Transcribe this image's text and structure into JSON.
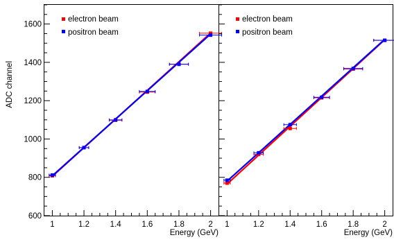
{
  "chart_data": [
    {
      "type": "line",
      "xlabel": "Energy (GeV)",
      "ylabel": "ADC channel",
      "xlim": [
        0.95,
        2.05
      ],
      "ylim": [
        600,
        1700
      ],
      "x_ticks": [
        "1",
        "1.2",
        "1.4",
        "1.6",
        "1.8",
        "2"
      ],
      "y_ticks": [
        "600",
        "800",
        "1000",
        "1200",
        "1400",
        "1600"
      ],
      "legend": {
        "position": "top-left",
        "entries": [
          "electron beam",
          "positron beam"
        ]
      },
      "series": [
        {
          "name": "electron beam",
          "color": "#ff0000",
          "x": [
            1.0,
            1.2,
            1.4,
            1.6,
            1.8,
            2.0
          ],
          "y": [
            808,
            955,
            1098,
            1245,
            1390,
            1552
          ],
          "xerr": [
            0.02,
            0.03,
            0.04,
            0.05,
            0.06,
            0.07
          ],
          "fit": [
            805,
            1553
          ]
        },
        {
          "name": "positron beam",
          "color": "#0000ff",
          "x": [
            1.0,
            1.2,
            1.4,
            1.6,
            1.8,
            2.0
          ],
          "y": [
            812,
            955,
            1100,
            1248,
            1390,
            1542
          ],
          "xerr": [
            0.02,
            0.03,
            0.04,
            0.05,
            0.06,
            0.07
          ],
          "fit": [
            808,
            1548
          ]
        }
      ]
    },
    {
      "type": "line",
      "xlabel": "Energy (GeV)",
      "ylabel": "",
      "xlim": [
        0.95,
        2.05
      ],
      "ylim": [
        600,
        1700
      ],
      "x_ticks": [
        "1",
        "1.2",
        "1.4",
        "1.6",
        "1.8",
        "2"
      ],
      "y_ticks": [],
      "legend": {
        "position": "top-left",
        "entries": [
          "electron beam",
          "positron beam"
        ]
      },
      "series": [
        {
          "name": "electron beam",
          "color": "#ff0000",
          "x": [
            1.0,
            1.2,
            1.4,
            1.6,
            1.8,
            2.0
          ],
          "y": [
            770,
            920,
            1055,
            1215,
            1365,
            1515
          ],
          "xerr": [
            0.02,
            0.03,
            0.04,
            0.05,
            0.06,
            0.07
          ],
          "fit": [
            765,
            1518
          ]
        },
        {
          "name": "positron beam",
          "color": "#0000ff",
          "x": [
            1.0,
            1.2,
            1.4,
            1.6,
            1.8,
            2.0
          ],
          "y": [
            785,
            928,
            1075,
            1218,
            1368,
            1515
          ],
          "xerr": [
            0.02,
            0.03,
            0.04,
            0.05,
            0.06,
            0.07
          ],
          "fit": [
            780,
            1520
          ]
        }
      ]
    }
  ]
}
